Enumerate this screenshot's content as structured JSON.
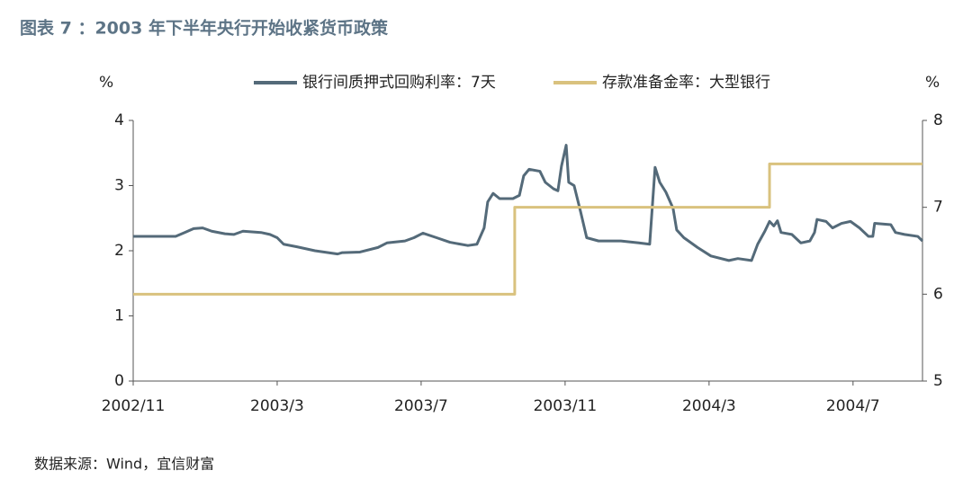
{
  "chart_data": {
    "type": "line",
    "title": "图表 7 ：2003 年下半年央行开始收紧货币政策",
    "source": "数据来源：Wind，宜信财富",
    "y_label": "%",
    "y2_label": "%",
    "xlim": [
      0,
      21.93
    ],
    "xticks": [
      {
        "value": 0,
        "label": "2002/11"
      },
      {
        "value": 4,
        "label": "2003/3"
      },
      {
        "value": 8,
        "label": "2003/7"
      },
      {
        "value": 12,
        "label": "2003/11"
      },
      {
        "value": 16,
        "label": "2004/3"
      },
      {
        "value": 20,
        "label": "2004/7"
      }
    ],
    "ylim": [
      0,
      4
    ],
    "yticks": [
      0,
      1,
      2,
      3,
      4
    ],
    "y2lim": [
      5,
      8
    ],
    "y2ticks": [
      5,
      6,
      7,
      8
    ],
    "legend": "top",
    "series": [
      {
        "name": "银行间质押式回购利率：7天",
        "color": "#546a79",
        "axis": "y",
        "x": [
          0,
          1.18,
          1.43,
          1.68,
          1.93,
          2.18,
          2.55,
          2.8,
          3.05,
          3.55,
          3.8,
          4,
          4.18,
          4.55,
          5.05,
          5.68,
          5.8,
          6.3,
          6.8,
          7.05,
          7.55,
          7.8,
          8.05,
          8.43,
          8.8,
          9.3,
          9.55,
          9.75,
          9.85,
          10,
          10.18,
          10.55,
          10.73,
          10.85,
          11,
          11.3,
          11.45,
          11.68,
          11.8,
          11.9,
          12.03,
          12.1,
          12.25,
          12.43,
          12.6,
          12.93,
          13.55,
          14.05,
          14.35,
          14.5,
          14.63,
          14.8,
          15,
          15.1,
          15.3,
          15.68,
          16.05,
          16.55,
          16.8,
          17.18,
          17.35,
          17.55,
          17.68,
          17.8,
          17.9,
          18,
          18.3,
          18.55,
          18.8,
          18.93,
          19,
          19.25,
          19.43,
          19.68,
          19.93,
          20.18,
          20.43,
          20.55,
          20.6,
          21.05,
          21.18,
          21.43,
          21.8,
          21.93
        ],
        "values": [
          2.22,
          2.22,
          2.28,
          2.34,
          2.35,
          2.3,
          2.26,
          2.25,
          2.3,
          2.28,
          2.25,
          2.2,
          2.1,
          2.06,
          2.0,
          1.95,
          1.97,
          1.98,
          2.05,
          2.12,
          2.15,
          2.2,
          2.27,
          2.2,
          2.13,
          2.08,
          2.1,
          2.35,
          2.75,
          2.88,
          2.8,
          2.8,
          2.85,
          3.15,
          3.25,
          3.22,
          3.05,
          2.95,
          2.92,
          3.3,
          3.62,
          3.05,
          3.0,
          2.6,
          2.2,
          2.15,
          2.15,
          2.12,
          2.1,
          3.28,
          3.05,
          2.9,
          2.65,
          2.32,
          2.2,
          2.05,
          1.92,
          1.85,
          1.88,
          1.85,
          2.1,
          2.3,
          2.45,
          2.38,
          2.46,
          2.28,
          2.25,
          2.12,
          2.15,
          2.28,
          2.48,
          2.45,
          2.35,
          2.42,
          2.45,
          2.35,
          2.22,
          2.22,
          2.42,
          2.4,
          2.28,
          2.25,
          2.22,
          2.15
        ]
      },
      {
        "name": "存款准备金率：大型银行",
        "color": "#d9c27e",
        "axis": "y2",
        "x": [
          0,
          10.6,
          10.6,
          17.68,
          17.68,
          21.93
        ],
        "values": [
          6,
          6,
          7,
          7,
          7.5,
          7.5
        ]
      }
    ]
  }
}
